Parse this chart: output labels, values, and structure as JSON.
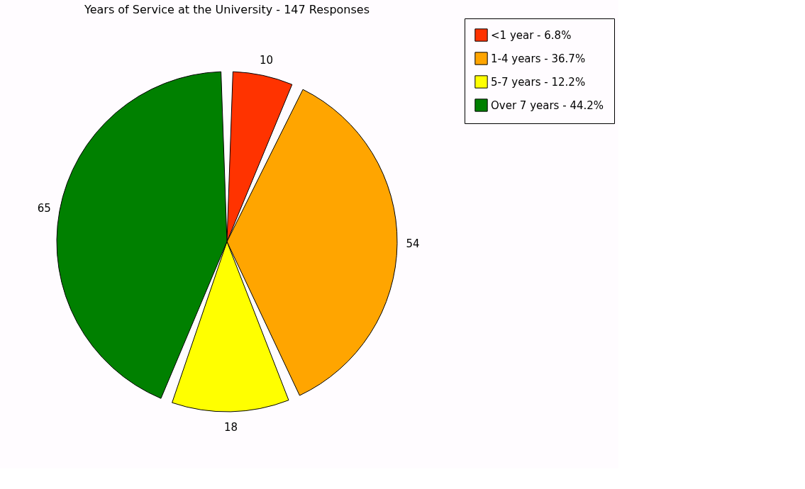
{
  "chart_data": {
    "type": "pie",
    "title": "Years of Service at the University - 147 Responses",
    "categories": [
      "<1 year - 6.8%",
      "1-4 years - 36.7%",
      "5-7 years - 12.2%",
      "Over 7 years - 44.2%"
    ],
    "values": [
      10,
      54,
      18,
      65
    ],
    "colors": [
      "#ff3300",
      "#ffa500",
      "#ffff00",
      "#008000"
    ],
    "data_labels": true,
    "legend": "right"
  }
}
